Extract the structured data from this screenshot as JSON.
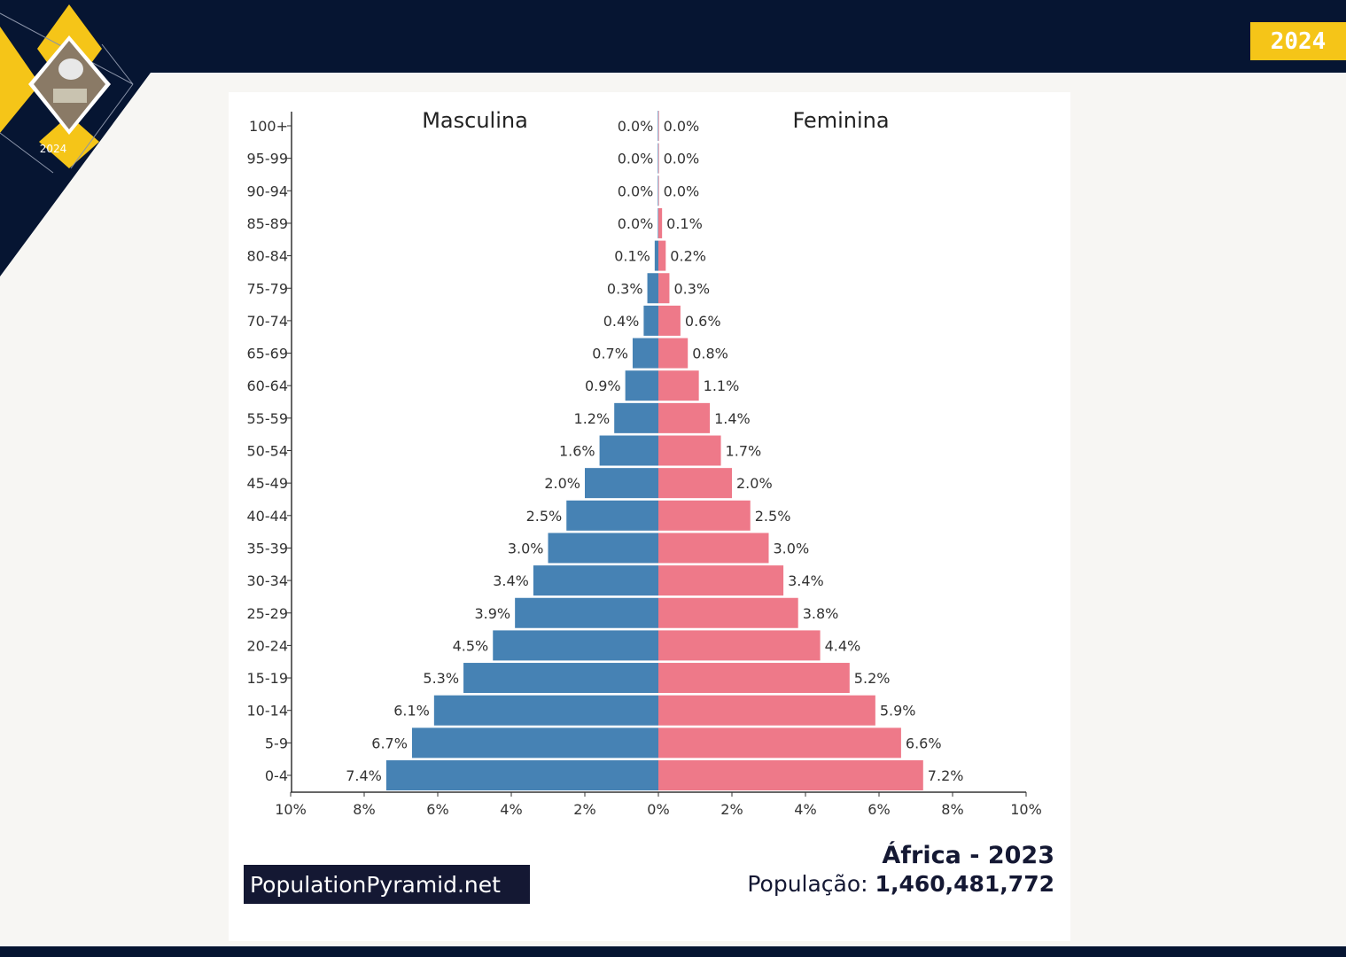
{
  "header": {
    "year_badge": "2024",
    "logo_year": "2024"
  },
  "colors": {
    "navy": "#061532",
    "yellow": "#f5c518",
    "male": "#4682b4",
    "female": "#ee7989"
  },
  "chart_data": {
    "type": "bar",
    "orientation": "horizontal-population-pyramid",
    "categories": [
      "0-4",
      "5-9",
      "10-14",
      "15-19",
      "20-24",
      "25-29",
      "30-34",
      "35-39",
      "40-44",
      "45-49",
      "50-54",
      "55-59",
      "60-64",
      "65-69",
      "70-74",
      "75-79",
      "80-84",
      "85-89",
      "90-94",
      "95-99",
      "100+"
    ],
    "series": [
      {
        "name": "Masculina",
        "values": [
          7.4,
          6.7,
          6.1,
          5.3,
          4.5,
          3.9,
          3.4,
          3.0,
          2.5,
          2.0,
          1.6,
          1.2,
          0.9,
          0.7,
          0.4,
          0.3,
          0.1,
          0.0,
          0.0,
          0.0,
          0.0
        ],
        "labels": [
          "7.4%",
          "6.7%",
          "6.1%",
          "5.3%",
          "4.5%",
          "3.9%",
          "3.4%",
          "3.0%",
          "2.5%",
          "2.0%",
          "1.6%",
          "1.2%",
          "0.9%",
          "0.7%",
          "0.4%",
          "0.3%",
          "0.1%",
          "0.0%",
          "0.0%",
          "0.0%",
          "0.0%"
        ],
        "color": "#4682b4"
      },
      {
        "name": "Feminina",
        "values": [
          7.2,
          6.6,
          5.9,
          5.2,
          4.4,
          3.8,
          3.4,
          3.0,
          2.5,
          2.0,
          1.7,
          1.4,
          1.1,
          0.8,
          0.6,
          0.3,
          0.2,
          0.1,
          0.0,
          0.0,
          0.0
        ],
        "labels": [
          "7.2%",
          "6.6%",
          "5.9%",
          "5.2%",
          "4.4%",
          "3.8%",
          "3.4%",
          "3.0%",
          "2.5%",
          "2.0%",
          "1.7%",
          "1.4%",
          "1.1%",
          "0.8%",
          "0.6%",
          "0.3%",
          "0.2%",
          "0.1%",
          "0.0%",
          "0.0%",
          "0.0%"
        ],
        "color": "#ee7989"
      }
    ],
    "xlim": [
      -10,
      10
    ],
    "x_ticks": [
      "10%",
      "8%",
      "6%",
      "4%",
      "2%",
      "0%",
      "2%",
      "4%",
      "6%",
      "8%",
      "10%"
    ],
    "x_tick_values": [
      -10,
      -8,
      -6,
      -4,
      -2,
      0,
      2,
      4,
      6,
      8,
      10
    ],
    "grid": false
  },
  "footer": {
    "brand": "PopulationPyramid.net",
    "region_year": "África - 2023",
    "population_label": "População:",
    "population_value": "1,460,481,772"
  }
}
